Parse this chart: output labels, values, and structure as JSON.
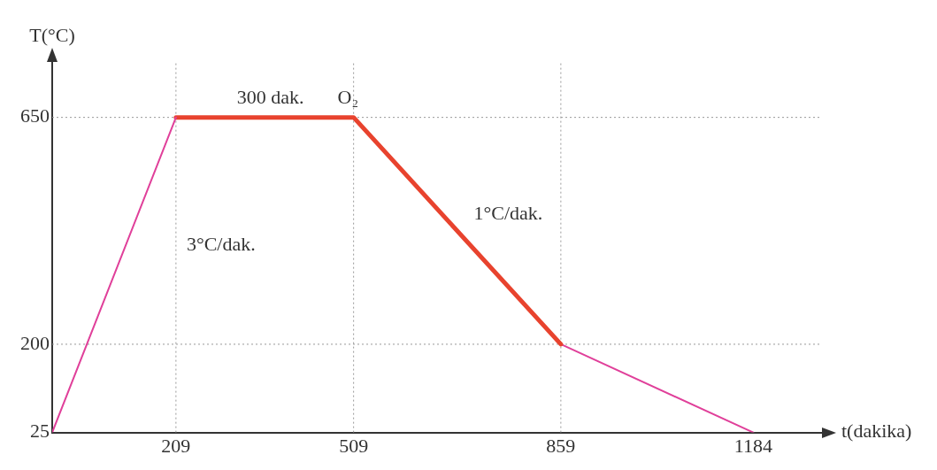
{
  "chart_data": {
    "type": "line",
    "xlabel": "t(dakika)",
    "ylabel": "T(°C)",
    "xlim": [
      0,
      1300
    ],
    "ylim": [
      25,
      760
    ],
    "xticks": [
      209,
      509,
      859,
      1184
    ],
    "yticks": [
      25,
      200,
      650
    ],
    "grid": false,
    "legend": false,
    "marker": "none",
    "line_style": "solid",
    "series": [
      {
        "x": [
          0,
          209
        ],
        "values": [
          25,
          650
        ],
        "color": "#e0409a"
      },
      {
        "x": [
          209,
          509,
          859
        ],
        "values": [
          650,
          650,
          200
        ],
        "color": "#e8432e"
      },
      {
        "x": [
          859,
          1184
        ],
        "values": [
          200,
          25
        ],
        "color": "#e0409a"
      }
    ],
    "ref_lines": [
      {
        "axis": "x",
        "value": 209,
        "color": "#999999",
        "line_style": "dotted"
      },
      {
        "axis": "x",
        "value": 509,
        "color": "#999999",
        "line_style": "dotted"
      },
      {
        "axis": "x",
        "value": 859,
        "color": "#999999",
        "line_style": "dotted"
      },
      {
        "axis": "y",
        "value": 200,
        "color": "#999999",
        "line_style": "dotted"
      },
      {
        "axis": "y",
        "value": 650,
        "color": "#999999",
        "line_style": "dotted"
      }
    ],
    "annotations": [
      {
        "text": "300 dak.",
        "x": 300,
        "y": 650
      },
      {
        "text": "O₂",
        "x": 470,
        "y": 650
      },
      {
        "text": "3°C/dak.",
        "x": 215,
        "y": 360
      },
      {
        "text": "1°C/dak.",
        "x": 700,
        "y": 420
      }
    ]
  }
}
